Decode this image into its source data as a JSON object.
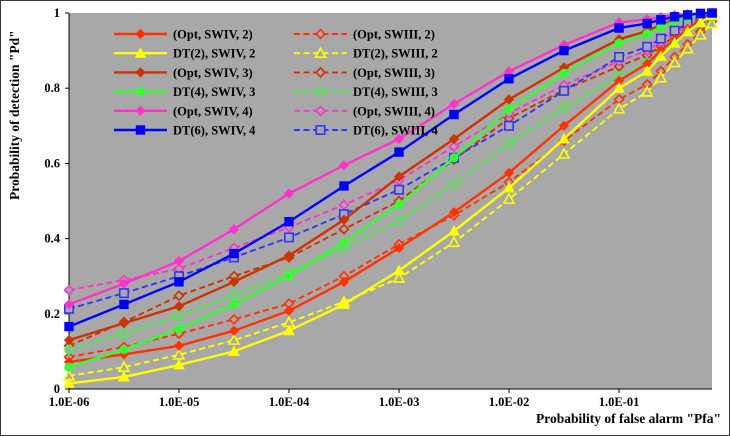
{
  "figure": {
    "background": "#ffffff",
    "plot_background": "#a8a8a8",
    "border_color": "#3a3a3a",
    "axis_color": "#000000"
  },
  "chart_data": {
    "type": "line",
    "title": "",
    "xlabel": "Probability of false alarm \"Pfa\"",
    "ylabel": "Probability of detection \"Pd\"",
    "x_scale": "log",
    "xlim": [
      1e-06,
      0.7
    ],
    "ylim": [
      0,
      1
    ],
    "grid": false,
    "legend_position": "top-left-inside",
    "x_tick_values": [
      1e-06,
      1e-05,
      0.0001,
      0.001,
      0.01,
      0.1
    ],
    "x_tick_labels": [
      "1.0E-06",
      "1.0E-05",
      "1.0E-04",
      "1.0E-03",
      "1.0E-02",
      "1.0E-01"
    ],
    "y_tick_values": [
      0,
      0.2,
      0.4,
      0.6,
      0.8,
      1
    ],
    "y_tick_labels": [
      "0",
      "0.2",
      "0.4",
      "0.6",
      "0.8",
      "1"
    ],
    "x": [
      1e-06,
      3.16e-06,
      1e-05,
      3.16e-05,
      0.0001,
      0.000316,
      0.001,
      0.00316,
      0.01,
      0.0316,
      0.1,
      0.18,
      0.24,
      0.32,
      0.42,
      0.55,
      0.7
    ],
    "series": [
      {
        "name": "opt-swiv-2",
        "label": "(Opt, SWIV, 2)",
        "color": "#ff3300",
        "line": "solid",
        "marker": "diamond",
        "marker_fill": "filled",
        "legend_column": 1,
        "values": [
          0.072,
          0.092,
          0.115,
          0.155,
          0.208,
          0.285,
          0.375,
          0.47,
          0.575,
          0.7,
          0.82,
          0.865,
          0.9,
          0.93,
          0.958,
          0.98,
          0.995
        ]
      },
      {
        "name": "dt2-swiv-2",
        "label": "DT(2), SWIV, 2",
        "color": "#ffff00",
        "line": "solid",
        "marker": "triangle",
        "marker_fill": "filled",
        "legend_column": 1,
        "values": [
          0.015,
          0.032,
          0.064,
          0.1,
          0.155,
          0.225,
          0.315,
          0.42,
          0.535,
          0.665,
          0.8,
          0.845,
          0.885,
          0.92,
          0.95,
          0.975,
          0.993
        ]
      },
      {
        "name": "opt-swiv-3",
        "label": "(Opt, SWIV, 3)",
        "color": "#cc3300",
        "line": "solid",
        "marker": "diamond",
        "marker_fill": "filled",
        "legend_column": 1,
        "values": [
          0.13,
          0.175,
          0.22,
          0.285,
          0.355,
          0.45,
          0.565,
          0.665,
          0.77,
          0.855,
          0.93,
          0.952,
          0.968,
          0.982,
          0.991,
          0.997,
          1.0
        ]
      },
      {
        "name": "dt4-swiv-3",
        "label": "DT(4), SWIV, 3",
        "color": "#33ff33",
        "line": "solid",
        "marker": "circle",
        "marker_fill": "filled",
        "legend_column": 1,
        "values": [
          0.058,
          0.105,
          0.16,
          0.225,
          0.3,
          0.39,
          0.49,
          0.615,
          0.745,
          0.84,
          0.92,
          0.945,
          0.962,
          0.978,
          0.989,
          0.996,
          1.0
        ]
      },
      {
        "name": "opt-swiv-4",
        "label": "(Opt, SWIV, 4)",
        "color": "#ff33cc",
        "line": "solid",
        "marker": "diamond",
        "marker_fill": "filled",
        "legend_column": 1,
        "values": [
          0.225,
          0.28,
          0.34,
          0.425,
          0.52,
          0.595,
          0.665,
          0.758,
          0.845,
          0.915,
          0.975,
          0.983,
          0.989,
          0.994,
          0.997,
          0.999,
          1.0
        ]
      },
      {
        "name": "dt6-swiv-4",
        "label": "DT(6), SWIV, 4",
        "color": "#0000ff",
        "line": "solid",
        "marker": "square",
        "marker_fill": "filled",
        "legend_column": 1,
        "values": [
          0.166,
          0.225,
          0.285,
          0.36,
          0.445,
          0.54,
          0.63,
          0.73,
          0.825,
          0.9,
          0.96,
          0.972,
          0.982,
          0.99,
          0.995,
          0.999,
          1.0
        ]
      },
      {
        "name": "opt-swiii-2",
        "label": "(Opt, SWIII, 2)",
        "color": "#ff3300",
        "line": "dashed",
        "marker": "diamond",
        "marker_fill": "open",
        "legend_column": 2,
        "values": [
          0.085,
          0.112,
          0.147,
          0.185,
          0.227,
          0.3,
          0.385,
          0.462,
          0.55,
          0.66,
          0.77,
          0.81,
          0.845,
          0.883,
          0.917,
          0.95,
          0.978
        ]
      },
      {
        "name": "dt2-swiii-2",
        "label": "DT(2), SWIII, 2",
        "color": "#ffff00",
        "line": "dashed",
        "marker": "triangle",
        "marker_fill": "open",
        "legend_column": 2,
        "values": [
          0.035,
          0.058,
          0.091,
          0.13,
          0.177,
          0.232,
          0.295,
          0.39,
          0.505,
          0.625,
          0.745,
          0.79,
          0.828,
          0.868,
          0.905,
          0.942,
          0.972
        ]
      },
      {
        "name": "opt-swiii-3",
        "label": "(Opt, SWIII, 3)",
        "color": "#cc3300",
        "line": "dashed",
        "marker": "diamond",
        "marker_fill": "open",
        "legend_column": 2,
        "values": [
          0.115,
          0.178,
          0.248,
          0.3,
          0.35,
          0.425,
          0.5,
          0.61,
          0.72,
          0.795,
          0.858,
          0.888,
          0.912,
          0.938,
          0.96,
          0.979,
          0.992
        ]
      },
      {
        "name": "dt4-swiii-3",
        "label": "DT(4), SWIII, 3",
        "color": "#33ff33",
        "line": "dashed",
        "marker": "circle",
        "marker_fill": "open",
        "legend_column": 2,
        "values": [
          0.105,
          0.148,
          0.195,
          0.25,
          0.31,
          0.375,
          0.447,
          0.545,
          0.652,
          0.748,
          0.832,
          0.868,
          0.896,
          0.925,
          0.95,
          0.973,
          0.99
        ]
      },
      {
        "name": "opt-swiii-4",
        "label": "(Opt, SWIII, 4)",
        "color": "#ff33cc",
        "line": "dashed",
        "marker": "diamond",
        "marker_fill": "open",
        "legend_column": 2,
        "values": [
          0.263,
          0.29,
          0.32,
          0.375,
          0.43,
          0.49,
          0.555,
          0.645,
          0.733,
          0.808,
          0.872,
          0.9,
          0.922,
          0.946,
          0.966,
          0.983,
          0.995
        ]
      },
      {
        "name": "dt6-swiii-4",
        "label": "DT(6), SWIII, 4",
        "color": "#3333ff",
        "line": "dashed",
        "marker": "square",
        "marker_fill": "open",
        "legend_column": 2,
        "values": [
          0.213,
          0.255,
          0.3,
          0.35,
          0.403,
          0.465,
          0.53,
          0.615,
          0.7,
          0.793,
          0.883,
          0.91,
          0.932,
          0.953,
          0.972,
          0.988,
          0.998
        ]
      }
    ]
  }
}
